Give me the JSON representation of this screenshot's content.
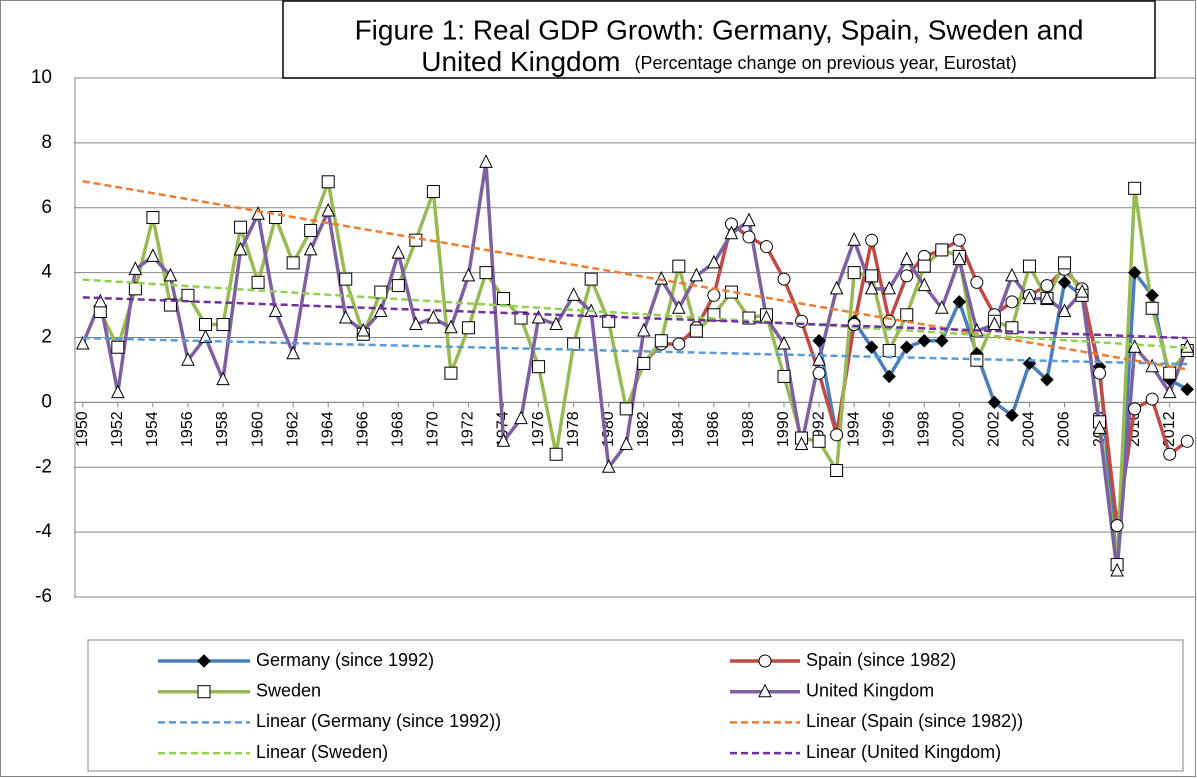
{
  "chart_data": {
    "type": "line",
    "title": [
      "Figure 1: Real GDP Growth: Germany, Spain, Sweden and",
      "United Kingdom"
    ],
    "subtitle": "(Percentage change on previous year, Eurostat)",
    "x": [
      1950,
      1951,
      1952,
      1953,
      1954,
      1955,
      1956,
      1957,
      1958,
      1959,
      1960,
      1961,
      1962,
      1963,
      1964,
      1965,
      1966,
      1967,
      1968,
      1969,
      1970,
      1971,
      1972,
      1973,
      1974,
      1975,
      1976,
      1977,
      1978,
      1979,
      1980,
      1981,
      1982,
      1983,
      1984,
      1985,
      1986,
      1987,
      1988,
      1989,
      1990,
      1991,
      1992,
      1993,
      1994,
      1995,
      1996,
      1997,
      1998,
      1999,
      2000,
      2001,
      2002,
      2003,
      2004,
      2005,
      2006,
      2007,
      2008,
      2009,
      2010,
      2011,
      2012,
      2013
    ],
    "xlim": [
      1949.5,
      2013.5
    ],
    "xticks": [
      1950,
      1952,
      1954,
      1956,
      1958,
      1960,
      1962,
      1964,
      1966,
      1968,
      1970,
      1972,
      1974,
      1976,
      1978,
      1980,
      1982,
      1984,
      1986,
      1988,
      1990,
      1992,
      1994,
      1996,
      1998,
      2000,
      2002,
      2004,
      2006,
      2008,
      2010,
      2012
    ],
    "ylim": [
      -6,
      10
    ],
    "yticks": [
      -6,
      -4,
      -2,
      0,
      2,
      4,
      6,
      8,
      10
    ],
    "grid": true,
    "legend": "bottom",
    "series": [
      {
        "name": "Germany (since 1992)",
        "color": "#4a7ebb",
        "marker": "diamond",
        "trend": {
          "name": "Linear (Germany (since 1992))",
          "color": "#5b9bd5"
        },
        "values": [
          null,
          null,
          null,
          null,
          null,
          null,
          null,
          null,
          null,
          null,
          null,
          null,
          null,
          null,
          null,
          null,
          null,
          null,
          null,
          null,
          null,
          null,
          null,
          null,
          null,
          null,
          null,
          null,
          null,
          null,
          null,
          null,
          null,
          null,
          null,
          null,
          null,
          null,
          null,
          null,
          null,
          null,
          1.9,
          -1.0,
          2.5,
          1.7,
          0.8,
          1.7,
          1.9,
          1.9,
          3.1,
          1.5,
          0.0,
          -0.4,
          1.2,
          0.7,
          3.7,
          3.3,
          1.1,
          -5.1,
          4.0,
          3.3,
          0.7,
          0.4
        ]
      },
      {
        "name": "Spain (since 1982)",
        "color": "#be4b48",
        "marker": "circle",
        "trend": {
          "name": "Linear (Spain (since 1982))",
          "color": "#ed7d31"
        },
        "values": [
          null,
          null,
          null,
          null,
          null,
          null,
          null,
          null,
          null,
          null,
          null,
          null,
          null,
          null,
          null,
          null,
          null,
          null,
          null,
          null,
          null,
          null,
          null,
          null,
          null,
          null,
          null,
          null,
          null,
          null,
          null,
          null,
          1.2,
          1.8,
          1.8,
          2.3,
          3.3,
          5.5,
          5.1,
          4.8,
          3.8,
          2.5,
          0.9,
          -1.0,
          2.4,
          5.0,
          2.5,
          3.9,
          4.5,
          4.7,
          5.0,
          3.7,
          2.7,
          3.1,
          3.3,
          3.6,
          4.1,
          3.5,
          0.9,
          -3.8,
          -0.2,
          0.1,
          -1.6,
          -1.2
        ]
      },
      {
        "name": "Sweden",
        "color": "#98b954",
        "marker": "square",
        "trend": {
          "name": "Linear (Sweden)",
          "color": "#92d050"
        },
        "values": [
          null,
          2.8,
          1.7,
          3.5,
          5.7,
          3.0,
          3.3,
          2.4,
          2.4,
          5.4,
          3.7,
          5.7,
          4.3,
          5.3,
          6.8,
          3.8,
          2.1,
          3.4,
          3.6,
          5.0,
          6.5,
          0.9,
          2.3,
          4.0,
          3.2,
          2.6,
          1.1,
          -1.6,
          1.8,
          3.8,
          2.5,
          -0.2,
          1.2,
          1.9,
          4.2,
          2.2,
          2.7,
          3.4,
          2.6,
          2.7,
          0.8,
          -1.1,
          -1.2,
          -2.1,
          4.0,
          3.9,
          1.6,
          2.7,
          4.2,
          4.7,
          4.5,
          1.3,
          2.5,
          2.3,
          4.2,
          3.2,
          4.3,
          3.3,
          -0.6,
          -5.0,
          6.6,
          2.9,
          0.9,
          1.6
        ]
      },
      {
        "name": "United Kingdom",
        "color": "#7d60a0",
        "marker": "triangle",
        "trend": {
          "name": "Linear (United Kingdom)",
          "color": "#7030a0"
        },
        "values": [
          1.8,
          3.1,
          0.3,
          4.1,
          4.5,
          3.9,
          1.3,
          2.0,
          0.7,
          4.7,
          5.8,
          2.8,
          1.5,
          4.7,
          5.9,
          2.6,
          2.2,
          2.8,
          4.6,
          2.4,
          2.6,
          2.3,
          3.9,
          7.4,
          -1.2,
          -0.5,
          2.6,
          2.4,
          3.3,
          2.8,
          -2.0,
          -1.3,
          2.2,
          3.8,
          2.9,
          3.9,
          4.3,
          5.2,
          5.6,
          2.6,
          1.8,
          -1.3,
          1.3,
          3.5,
          5.0,
          3.5,
          3.5,
          4.4,
          3.6,
          2.9,
          4.4,
          2.2,
          2.4,
          3.9,
          3.2,
          3.2,
          2.8,
          3.4,
          -0.8,
          -5.2,
          1.7,
          1.1,
          0.3,
          1.7
        ]
      }
    ]
  }
}
